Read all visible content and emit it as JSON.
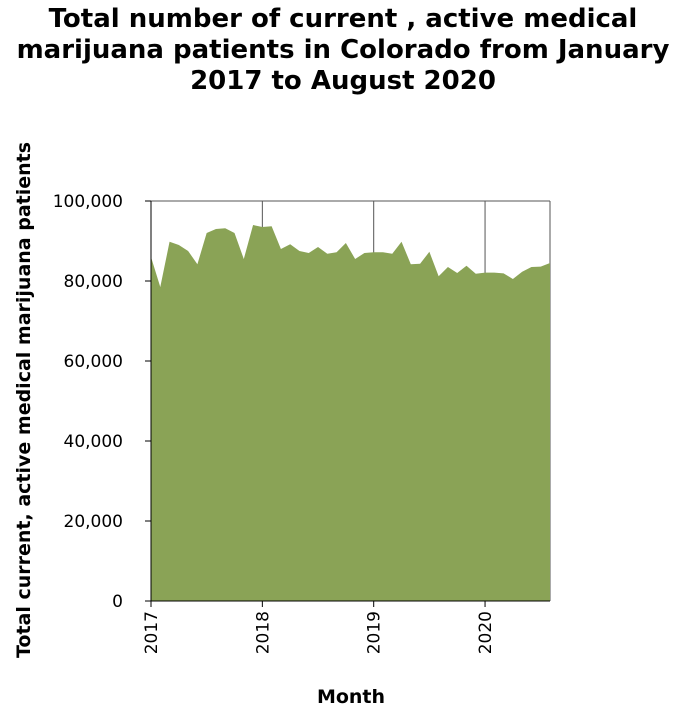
{
  "chart_data": {
    "type": "area",
    "title_lines": [
      "Total number of current , active medical",
      "marijuana patients in Colorado from January",
      "2017 to August 2020"
    ],
    "xlabel": "Month",
    "ylabel": "Total current, active medical marijuana patients",
    "x_ticks": [
      "2017",
      "2018",
      "2019",
      "2020"
    ],
    "y_ticks": [
      "0",
      "20,000",
      "40,000",
      "60,000",
      "80,000",
      "100,000"
    ],
    "ylim": [
      0,
      100000
    ],
    "xlim": [
      "2017-01",
      "2020-08"
    ],
    "grid": "vertical lines at year ticks",
    "fill_color": "#8aa356",
    "series": [
      {
        "x": [
          "2017-01",
          "2017-02",
          "2017-03",
          "2017-04",
          "2017-05",
          "2017-06",
          "2017-07",
          "2017-08",
          "2017-09",
          "2017-10",
          "2017-11",
          "2017-12",
          "2018-01",
          "2018-02",
          "2018-03",
          "2018-04",
          "2018-05",
          "2018-06",
          "2018-07",
          "2018-08",
          "2018-09",
          "2018-10",
          "2018-11",
          "2018-12",
          "2019-01",
          "2019-02",
          "2019-03",
          "2019-04",
          "2019-05",
          "2019-06",
          "2019-07",
          "2019-08",
          "2019-09",
          "2019-10",
          "2019-11",
          "2019-12",
          "2020-01",
          "2020-02",
          "2020-03",
          "2020-04",
          "2020-05",
          "2020-06",
          "2020-07",
          "2020-08"
        ],
        "values": [
          86000,
          78500,
          89800,
          89000,
          87500,
          84200,
          92000,
          93000,
          93200,
          92000,
          85500,
          94000,
          93500,
          93700,
          88000,
          89200,
          87500,
          87000,
          88500,
          86800,
          87200,
          89500,
          85500,
          87000,
          87200,
          87200,
          86800,
          89800,
          84200,
          84300,
          87300,
          81200,
          83500,
          82000,
          83800,
          81800,
          82100,
          82100,
          81900,
          80500,
          82300,
          83500,
          83600,
          84500
        ]
      }
    ]
  }
}
